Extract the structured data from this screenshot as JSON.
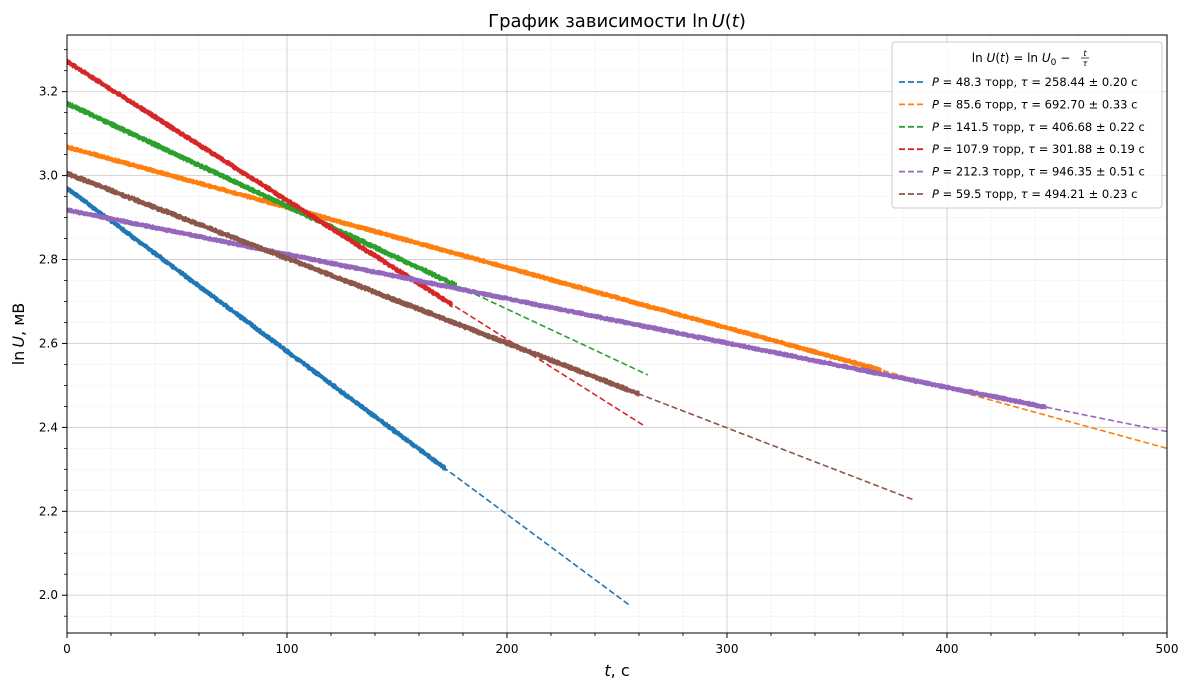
{
  "chart_data": {
    "type": "line",
    "title": "График зависимости ln U(t)",
    "title_parts": {
      "prefix": "График зависимости ",
      "func": "ln",
      "var": "U",
      "arg": "t"
    },
    "xlabel": {
      "var": "t",
      "unit": ", с"
    },
    "ylabel": {
      "func": "ln",
      "var": "U",
      "unit": ", мВ"
    },
    "xlim": [
      0,
      500
    ],
    "ylim": [
      1.91,
      3.335
    ],
    "xticks": [
      0,
      100,
      200,
      300,
      400,
      500
    ],
    "yticks": [
      2.0,
      2.2,
      2.4,
      2.6,
      2.8,
      3.0,
      3.2
    ],
    "grid": true,
    "minor_grid": true,
    "legend_position": "top-right",
    "legend_title": "ln U(t) = ln U0 − t/τ",
    "series": [
      {
        "name": "P = 48.3 торр, τ = 258.44 ± 0.20 с",
        "legend": {
          "p": "48.3",
          "tau": "258.44",
          "err": "0.20"
        },
        "color": "#1f77b4",
        "data_end": 172,
        "fit": {
          "x": [
            0,
            256
          ],
          "y": [
            2.97,
            1.975
          ]
        },
        "noise": 0.004
      },
      {
        "name": "P = 85.6 торр, τ = 692.70 ± 0.33 с",
        "legend": {
          "p": "85.6",
          "tau": "692.70",
          "err": "0.33"
        },
        "color": "#ff7f0e",
        "data_end": 370,
        "fit": {
          "x": [
            0,
            500
          ],
          "y": [
            3.068,
            2.35
          ]
        },
        "noise": 0.003
      },
      {
        "name": "P = 141.5 торр, τ = 406.68 ± 0.22 с",
        "legend": {
          "p": "141.5",
          "tau": "406.68",
          "err": "0.22"
        },
        "color": "#2ca02c",
        "data_end": 177,
        "fit": {
          "x": [
            0,
            264
          ],
          "y": [
            3.172,
            2.525
          ]
        },
        "noise": 0.004
      },
      {
        "name": "P = 107.9 торр, τ = 301.88 ± 0.19 с",
        "legend": {
          "p": "107.9",
          "tau": "301.88",
          "err": "0.19"
        },
        "color": "#d62728",
        "data_end": 175,
        "fit": {
          "x": [
            0,
            262
          ],
          "y": [
            3.272,
            2.405
          ]
        },
        "noise": 0.004
      },
      {
        "name": "P = 212.3 торр, τ = 946.35 ± 0.51 с",
        "legend": {
          "p": "212.3",
          "tau": "946.35",
          "err": "0.51"
        },
        "color": "#9467bd",
        "data_end": 445,
        "fit": {
          "x": [
            0,
            500
          ],
          "y": [
            2.918,
            2.39
          ]
        },
        "noise": 0.003
      },
      {
        "name": "P = 59.5 торр, τ = 494.21 ± 0.23 с",
        "legend": {
          "p": "59.5",
          "tau": "494.21",
          "err": "0.23"
        },
        "color": "#8c564b",
        "data_end": 260,
        "fit": {
          "x": [
            0,
            385
          ],
          "y": [
            3.005,
            2.227
          ]
        },
        "noise": 0.004
      }
    ]
  }
}
